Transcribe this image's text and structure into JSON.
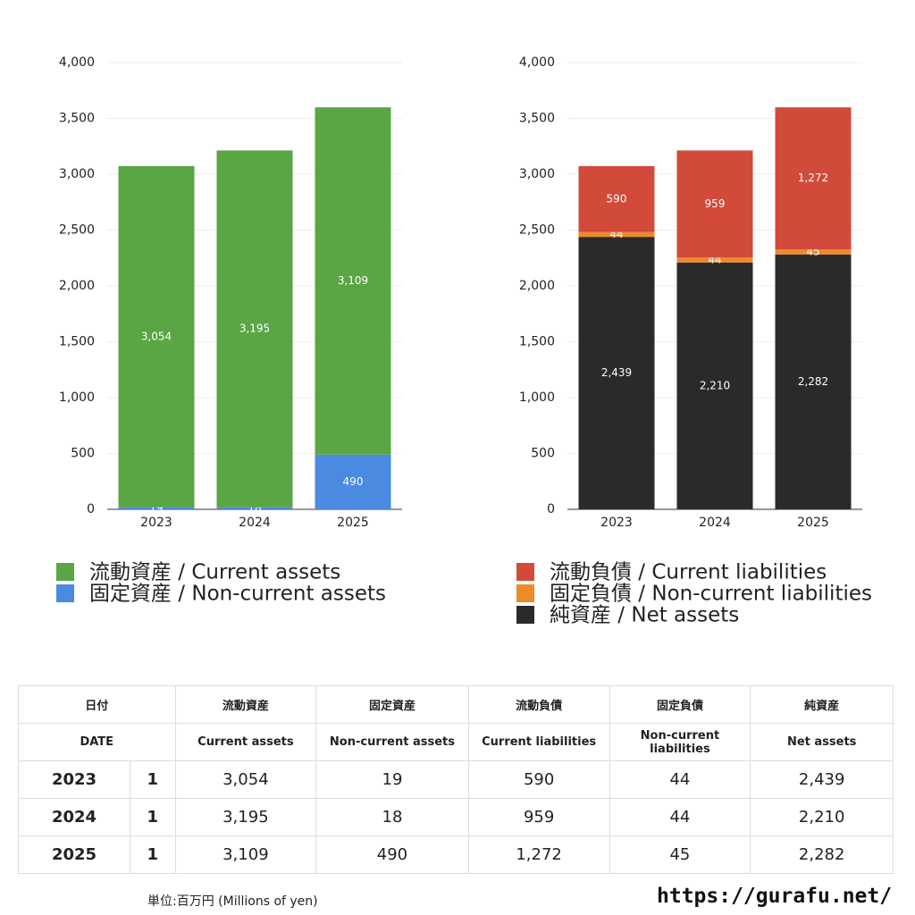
{
  "chart_data": [
    {
      "type": "stacked_bar",
      "categories": [
        "2023",
        "2024",
        "2025"
      ],
      "series": [
        {
          "name": "流動資産 / Current assets",
          "color": "#5aa544",
          "values": [
            3054,
            3195,
            3109
          ],
          "value_labels": [
            "3,054",
            "3,195",
            "3,109"
          ]
        },
        {
          "name": "固定資産 / Non-current assets",
          "color": "#4a8ae0",
          "values": [
            19,
            18,
            490
          ]
        }
      ],
      "ylim": [
        0,
        4000
      ],
      "yticks": [
        0,
        500,
        {
          "value": 1000,
          "label": "1,000"
        },
        {
          "value": 1500,
          "label": "1,500"
        },
        {
          "value": 2000,
          "label": "2,000"
        },
        {
          "value": 2500,
          "label": "2,500"
        },
        {
          "value": 3000,
          "label": "3,000"
        },
        {
          "value": 3500,
          "label": "3,500"
        },
        {
          "value": 4000,
          "label": "4,000"
        }
      ],
      "grid": true
    },
    {
      "type": "stacked_bar",
      "categories": [
        "2023",
        "2024",
        "2025"
      ],
      "series": [
        {
          "name": "流動負債 / Current liabilities",
          "color": "#d24a3a",
          "values": [
            590,
            959,
            1272
          ],
          "value_labels": [
            "590",
            "959",
            "1,272"
          ]
        },
        {
          "name": "固定負債 / Non-current liabilities",
          "color": "#ec8a2c",
          "values": [
            44,
            44,
            45
          ]
        },
        {
          "name": "純資産 / Net assets",
          "color": "#2a2a2a",
          "values": [
            2439,
            2210,
            2282
          ],
          "value_labels": [
            "2,439",
            "2,210",
            "2,282"
          ]
        }
      ],
      "ylim": [
        0,
        4000
      ],
      "yticks": [
        0,
        500,
        {
          "value": 1000,
          "label": "1,000"
        },
        {
          "value": 1500,
          "label": "1,500"
        },
        {
          "value": 2000,
          "label": "2,000"
        },
        {
          "value": 2500,
          "label": "2,500"
        },
        {
          "value": 3000,
          "label": "3,000"
        },
        {
          "value": 3500,
          "label": "3,500"
        },
        {
          "value": 4000,
          "label": "4,000"
        }
      ],
      "grid": true
    }
  ],
  "table": {
    "header": [
      [
        "日付",
        "流動資産",
        "固定資産",
        "流動負債",
        "固定負債",
        "純資産"
      ],
      [
        "DATE",
        "Current assets",
        "Non-current assets",
        "Current liabilities",
        "Non-current liabilities",
        "Net assets"
      ]
    ],
    "rows": [
      [
        "2023",
        "1",
        "3,054",
        "19",
        "590",
        "44",
        "2,439"
      ],
      [
        "2024",
        "1",
        "3,195",
        "18",
        "959",
        "44",
        "2,210"
      ],
      [
        "2025",
        "1",
        "3,109",
        "490",
        "1,272",
        "45",
        "2,282"
      ]
    ]
  },
  "footer": {
    "unit": "単位:百万円 (Millions of yen)",
    "url": "https://gurafu.net/"
  }
}
